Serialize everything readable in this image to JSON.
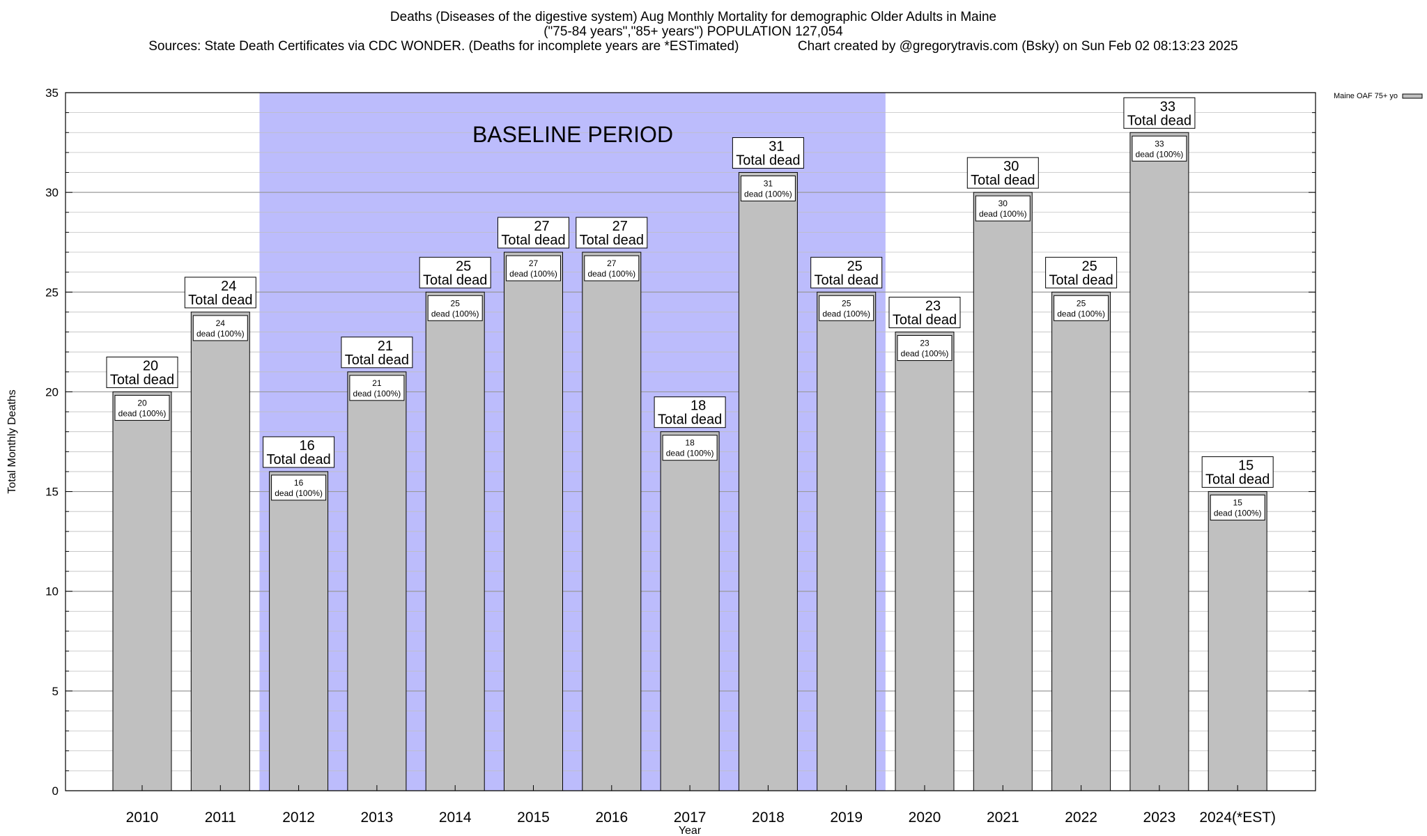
{
  "header": {
    "line1": "Deaths (Diseases of the digestive system) Aug Monthly Mortality for demographic Older Adults in Maine",
    "line2": "(\"75-84 years\",\"85+ years\") POPULATION 127,054",
    "line3": "Sources: State Death Certificates via CDC WONDER. (Deaths for incomplete years are *ESTimated)                Chart created by @gregorytravis.com (Bsky) on Sun Feb 02 08:13:23 2025"
  },
  "chart_data": {
    "type": "bar",
    "title": "Deaths (Diseases of the digestive system) Aug Monthly Mortality for demographic Older Adults in Maine",
    "xlabel": "Year",
    "ylabel": "Total Monthly Deaths",
    "ylim": [
      0,
      35
    ],
    "yticks": [
      0,
      5,
      10,
      15,
      20,
      25,
      30,
      35
    ],
    "grid": true,
    "categories": [
      "2010",
      "2011",
      "2012",
      "2013",
      "2014",
      "2015",
      "2016",
      "2017",
      "2018",
      "2019",
      "2020",
      "2021",
      "2022",
      "2023",
      "2024(*EST)"
    ],
    "series": [
      {
        "name": "Maine OAF 75+ yo",
        "values": [
          20,
          24,
          16,
          21,
          25,
          27,
          27,
          18,
          31,
          25,
          23,
          30,
          25,
          33,
          15
        ]
      }
    ],
    "top_label_suffix": "Total dead",
    "inner_label_suffix": "dead (100%)",
    "baseline": {
      "label": "BASELINE PERIOD",
      "start": "2012",
      "end": "2019"
    },
    "legend_position": "top-right",
    "colors": {
      "bar": "#c0c0c0",
      "baseline": "#bcbcfc",
      "grid": "#bfbfbf"
    }
  }
}
